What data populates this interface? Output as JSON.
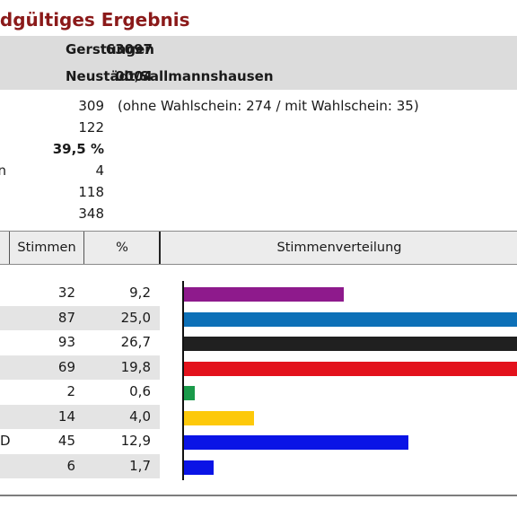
{
  "title": "Endgültiges Ergebnis",
  "gemeinde": {
    "code": "63097",
    "name": "Gerstungen"
  },
  "bezirk": {
    "code": "0004",
    "name": "Neustädt/Sallmannshausen"
  },
  "stats": [
    {
      "label": "",
      "value": "309",
      "note": "(ohne Wahlschein: 274 / mit Wahlschein: 35)"
    },
    {
      "label": "",
      "value": "122",
      "note": ""
    },
    {
      "label": "",
      "value": "39,5 %",
      "note": "",
      "bold": true
    },
    {
      "label": "n",
      "value": "4",
      "note": ""
    },
    {
      "label": "",
      "value": "118",
      "note": ""
    },
    {
      "label": "",
      "value": "348",
      "note": ""
    }
  ],
  "table": {
    "col_stimmen": "Stimmen",
    "col_prozent": "%",
    "col_verteilung": "Stimmenverteilung"
  },
  "chart_data": {
    "type": "bar",
    "orientation": "horizontal",
    "title": "Stimmenverteilung",
    "values_votes": [
      32,
      87,
      93,
      69,
      2,
      14,
      45,
      6
    ],
    "values_percent": [
      9.2,
      25.0,
      26.7,
      19.8,
      0.6,
      4.0,
      12.9,
      1.7
    ],
    "colors": [
      "#8e1a8c",
      "#0d70b7",
      "#202020",
      "#e3121c",
      "#1a9a4a",
      "#fdc90a",
      "#0a14e6",
      "#0a14e6"
    ],
    "row_labels": [
      "",
      "",
      "",
      "",
      "",
      "",
      "D",
      ""
    ],
    "xlim": [
      0,
      14.9
    ],
    "bars_clipped_at_right_edge": true
  },
  "rows": [
    {
      "name": "",
      "votes": "32",
      "pct": "9,2"
    },
    {
      "name": "",
      "votes": "87",
      "pct": "25,0"
    },
    {
      "name": "",
      "votes": "93",
      "pct": "26,7"
    },
    {
      "name": "",
      "votes": "69",
      "pct": "19,8"
    },
    {
      "name": "",
      "votes": "2",
      "pct": "0,6"
    },
    {
      "name": "",
      "votes": "14",
      "pct": "4,0"
    },
    {
      "name": "D",
      "votes": "45",
      "pct": "12,9"
    },
    {
      "name": "",
      "votes": "6",
      "pct": "1,7"
    }
  ]
}
